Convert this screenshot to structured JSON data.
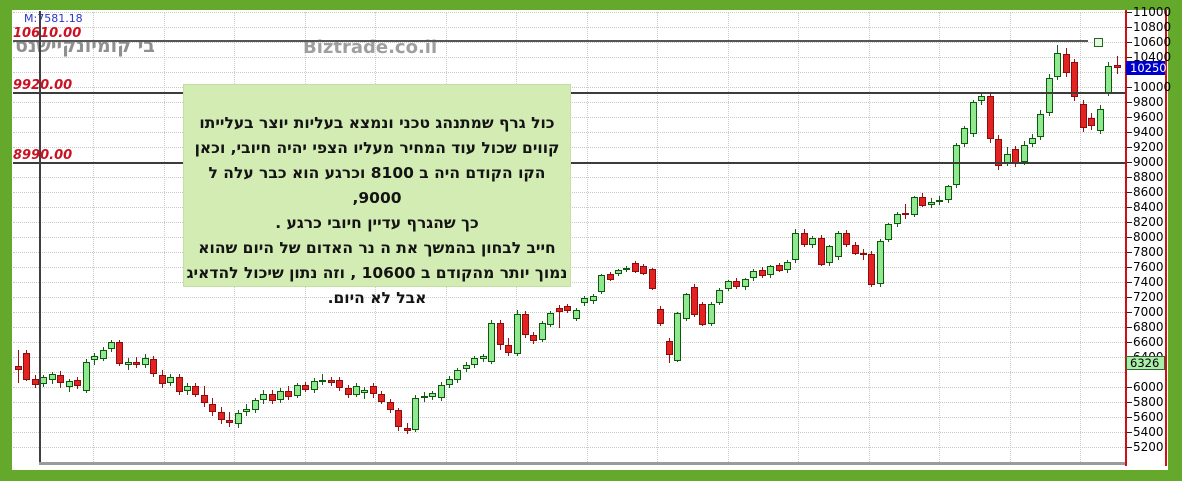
{
  "watermarks": {
    "m_label": "M:7581.18",
    "stock": "בי קומיונקיישנס",
    "site": "Biztrade.co.il"
  },
  "annotation": {
    "bg": "#d2ecb4",
    "lines": [
      "כול גרף  שמתנהג  טכני ונמצא  בעליות יוצר  בעלייתו",
      "קווים  שכול עוד  המחיר  מעליו הצפי  יהיה  חיובי, וכאן",
      "הקו  הקודם היה  ב 8100 וכרגע  הוא  כבר  עלה  ל  9000,",
      "כך  שהגרף  עדיין חיובי   כרגע .",
      "חייב  לבחון בהמשך  את  ה נר  האדום של  היום  שהוא",
      "נמוך יותר  מהקודם ב  10600 , וזה  נתון שיכול להדאיג",
      "אבל  לא  היום."
    ]
  },
  "chart_data": {
    "type": "candlestick",
    "title": "",
    "y_axis": {
      "min": 5200,
      "max": 11000,
      "step": 200,
      "tick_labels": [
        "11000",
        "10800",
        "10600",
        "10400",
        "10000",
        "9800",
        "9600",
        "9400",
        "9200",
        "9000",
        "8800",
        "8600",
        "8400",
        "8200",
        "8000",
        "7800",
        "7600",
        "7400",
        "7200",
        "7000",
        "6800",
        "6600",
        "6400",
        "6000",
        "5800",
        "5600",
        "5400",
        "5200"
      ]
    },
    "h_lines": [
      {
        "label": "10610.00",
        "value": 10610,
        "ends_at_marker": true
      },
      {
        "label": "9920.00",
        "value": 9920,
        "ends_at_marker": false
      },
      {
        "label": "8990.00",
        "value": 8990,
        "ends_at_marker": false
      }
    ],
    "price_tags": [
      {
        "label": "10250",
        "value": 10250,
        "bg": "#0000cd",
        "fg": "#ffffff",
        "border": "#0000cd"
      },
      {
        "label": "6326",
        "value": 6326,
        "bg": "#aaeeaa",
        "fg": "#000000",
        "border": "#336633"
      }
    ],
    "marker": {
      "value": 10600,
      "shape": "hollow-square"
    },
    "colors": {
      "up_fill": "#90e890",
      "up_border": "#0a5a0a",
      "up_wick": "#1a5c1a",
      "down_fill": "#e32222",
      "down_border": "#8c0d0d",
      "down_wick": "#991111",
      "grid": "#c9c9c9",
      "frame": "#64a82c",
      "axis_line": "#cc1111"
    },
    "candles": [
      [
        6280,
        6500,
        6050,
        6230
      ],
      [
        6450,
        6490,
        6080,
        6100
      ],
      [
        6110,
        6160,
        5990,
        6030
      ],
      [
        6040,
        6160,
        6000,
        6130
      ],
      [
        6090,
        6200,
        6040,
        6170
      ],
      [
        6160,
        6220,
        5990,
        6060
      ],
      [
        6000,
        6110,
        5930,
        6080
      ],
      [
        6090,
        6140,
        5970,
        6010
      ],
      [
        5950,
        6370,
        5920,
        6330
      ],
      [
        6360,
        6460,
        6290,
        6410
      ],
      [
        6380,
        6530,
        6350,
        6500
      ],
      [
        6510,
        6630,
        6470,
        6600
      ],
      [
        6600,
        6630,
        6280,
        6310
      ],
      [
        6300,
        6390,
        6230,
        6340
      ],
      [
        6340,
        6400,
        6250,
        6290
      ],
      [
        6300,
        6440,
        6260,
        6390
      ],
      [
        6380,
        6420,
        6140,
        6170
      ],
      [
        6160,
        6230,
        5990,
        6040
      ],
      [
        6050,
        6180,
        6010,
        6140
      ],
      [
        6130,
        6170,
        5890,
        5940
      ],
      [
        5950,
        6060,
        5900,
        6020
      ],
      [
        6020,
        6050,
        5870,
        5900
      ],
      [
        5900,
        6010,
        5740,
        5790
      ],
      [
        5780,
        5860,
        5610,
        5670
      ],
      [
        5670,
        5740,
        5510,
        5560
      ],
      [
        5560,
        5670,
        5470,
        5520
      ],
      [
        5510,
        5700,
        5460,
        5650
      ],
      [
        5670,
        5780,
        5610,
        5710
      ],
      [
        5700,
        5860,
        5660,
        5830
      ],
      [
        5830,
        5960,
        5780,
        5910
      ],
      [
        5910,
        5960,
        5780,
        5820
      ],
      [
        5830,
        5990,
        5790,
        5950
      ],
      [
        5950,
        6010,
        5830,
        5870
      ],
      [
        5880,
        6060,
        5850,
        6030
      ],
      [
        6030,
        6070,
        5930,
        5960
      ],
      [
        5960,
        6120,
        5920,
        6080
      ],
      [
        6080,
        6170,
        6030,
        6100
      ],
      [
        6100,
        6140,
        6010,
        6060
      ],
      [
        6100,
        6130,
        5950,
        5990
      ],
      [
        5990,
        6030,
        5860,
        5900
      ],
      [
        5900,
        6060,
        5870,
        6010
      ],
      [
        5920,
        6000,
        5840,
        5960
      ],
      [
        6010,
        6050,
        5860,
        5910
      ],
      [
        5910,
        5950,
        5770,
        5800
      ],
      [
        5800,
        5840,
        5650,
        5690
      ],
      [
        5690,
        5720,
        5420,
        5470
      ],
      [
        5460,
        5520,
        5380,
        5420
      ],
      [
        5430,
        5900,
        5400,
        5860
      ],
      [
        5860,
        5930,
        5800,
        5880
      ],
      [
        5870,
        5950,
        5830,
        5920
      ],
      [
        5850,
        6070,
        5820,
        6030
      ],
      [
        6030,
        6150,
        5990,
        6110
      ],
      [
        6090,
        6260,
        6060,
        6230
      ],
      [
        6240,
        6330,
        6200,
        6300
      ],
      [
        6290,
        6420,
        6260,
        6390
      ],
      [
        6380,
        6440,
        6330,
        6410
      ],
      [
        6330,
        6900,
        6310,
        6860
      ],
      [
        6850,
        6890,
        6500,
        6560
      ],
      [
        6560,
        6650,
        6410,
        6450
      ],
      [
        6440,
        7030,
        6420,
        6980
      ],
      [
        6970,
        7010,
        6650,
        6700
      ],
      [
        6700,
        6740,
        6580,
        6620
      ],
      [
        6630,
        6880,
        6600,
        6850
      ],
      [
        6830,
        7010,
        6800,
        6990
      ],
      [
        7060,
        7090,
        6790,
        7000
      ],
      [
        7080,
        7110,
        6990,
        7010
      ],
      [
        6910,
        7050,
        6880,
        7030
      ],
      [
        7120,
        7210,
        7080,
        7190
      ],
      [
        7150,
        7240,
        7110,
        7220
      ],
      [
        7270,
        7510,
        7240,
        7490
      ],
      [
        7510,
        7540,
        7410,
        7430
      ],
      [
        7510,
        7580,
        7480,
        7560
      ],
      [
        7570,
        7610,
        7540,
        7590
      ],
      [
        7660,
        7680,
        7520,
        7540
      ],
      [
        7620,
        7640,
        7490,
        7510
      ],
      [
        7570,
        7590,
        7290,
        7310
      ],
      [
        7040,
        7080,
        6820,
        6840
      ],
      [
        6620,
        6650,
        6320,
        6430
      ],
      [
        6350,
        7000,
        6330,
        6990
      ],
      [
        6910,
        7250,
        6880,
        7240
      ],
      [
        7340,
        7380,
        6940,
        6960
      ],
      [
        7110,
        7140,
        6810,
        6830
      ],
      [
        6840,
        7130,
        6810,
        7110
      ],
      [
        7120,
        7320,
        7090,
        7300
      ],
      [
        7310,
        7430,
        7280,
        7410
      ],
      [
        7420,
        7450,
        7310,
        7330
      ],
      [
        7340,
        7460,
        7300,
        7440
      ],
      [
        7450,
        7570,
        7410,
        7550
      ],
      [
        7560,
        7600,
        7460,
        7480
      ],
      [
        7490,
        7630,
        7450,
        7610
      ],
      [
        7630,
        7660,
        7530,
        7550
      ],
      [
        7560,
        7690,
        7520,
        7670
      ],
      [
        7690,
        8110,
        7650,
        8060
      ],
      [
        8060,
        8110,
        7870,
        7890
      ],
      [
        7900,
        8010,
        7860,
        7990
      ],
      [
        7990,
        8030,
        7610,
        7630
      ],
      [
        7650,
        7900,
        7620,
        7880
      ],
      [
        7730,
        8080,
        7700,
        8060
      ],
      [
        8060,
        8100,
        7870,
        7890
      ],
      [
        7890,
        7930,
        7760,
        7780
      ],
      [
        7790,
        7840,
        7700,
        7760
      ],
      [
        7770,
        7810,
        7340,
        7360
      ],
      [
        7370,
        7970,
        7340,
        7950
      ],
      [
        7960,
        8190,
        7930,
        8170
      ],
      [
        8180,
        8330,
        8140,
        8310
      ],
      [
        8320,
        8440,
        8240,
        8300
      ],
      [
        8300,
        8550,
        8270,
        8530
      ],
      [
        8530,
        8590,
        8400,
        8420
      ],
      [
        8430,
        8520,
        8390,
        8470
      ],
      [
        8470,
        8550,
        8430,
        8500
      ],
      [
        8500,
        8700,
        8460,
        8680
      ],
      [
        8690,
        9260,
        8650,
        9230
      ],
      [
        9240,
        9480,
        9200,
        9450
      ],
      [
        9380,
        9830,
        9340,
        9800
      ],
      [
        9810,
        9910,
        9760,
        9880
      ],
      [
        9880,
        9920,
        9260,
        9310
      ],
      [
        9310,
        9360,
        8900,
        8950
      ],
      [
        8990,
        9200,
        8950,
        9110
      ],
      [
        9170,
        9210,
        8930,
        8990
      ],
      [
        9000,
        9280,
        8960,
        9230
      ],
      [
        9240,
        9380,
        9200,
        9320
      ],
      [
        9330,
        9690,
        9290,
        9640
      ],
      [
        9650,
        10170,
        9610,
        10120
      ],
      [
        10140,
        10560,
        10100,
        10460
      ],
      [
        10440,
        10520,
        10140,
        10190
      ],
      [
        10330,
        10380,
        9820,
        9870
      ],
      [
        9780,
        9830,
        9400,
        9450
      ],
      [
        9590,
        9650,
        9430,
        9480
      ],
      [
        9420,
        9760,
        9380,
        9710
      ],
      [
        9920,
        10340,
        9880,
        10280
      ],
      [
        10300,
        10420,
        10170,
        10250
      ]
    ]
  }
}
